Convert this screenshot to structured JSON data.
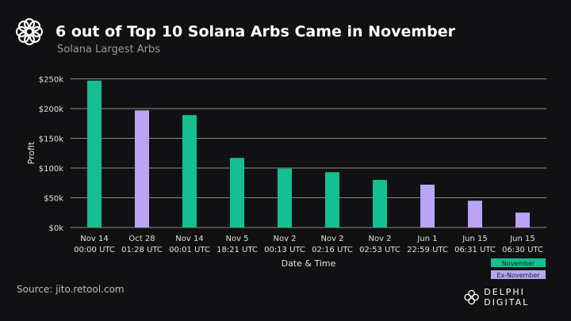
{
  "header": {
    "title": "6 out of Top 10 Solana Arbs Came in November",
    "subtitle": "Solana Largest Arbs",
    "logo_icon": "delphi-flower-icon"
  },
  "footer": {
    "source": "Source: jito.retool.com",
    "brand": "DELPHI DIGITAL"
  },
  "chart_data": {
    "type": "bar",
    "title": "6 out of Top 10 Solana Arbs Came in November",
    "subtitle": "Solana Largest Arbs",
    "xlabel": "Date & Time",
    "ylabel": "Profit",
    "ylim": [
      0,
      250000
    ],
    "yticks": [
      0,
      50000,
      100000,
      150000,
      200000,
      250000
    ],
    "ytick_labels": [
      "$0k",
      "$50k",
      "$100k",
      "$150k",
      "$200k",
      "$250k"
    ],
    "grid": true,
    "legend_placement": "bottom-right",
    "categories": [
      [
        "Nov 14",
        "00:00 UTC"
      ],
      [
        "Oct 28",
        "01:28 UTC"
      ],
      [
        "Nov 14",
        "00:01 UTC"
      ],
      [
        "Nov 5",
        "18:21 UTC"
      ],
      [
        "Nov 2",
        "00:13 UTC"
      ],
      [
        "Nov 2",
        "02:16 UTC"
      ],
      [
        "Nov 2",
        "02:53 UTC"
      ],
      [
        "Jun 1",
        "22:59 UTC"
      ],
      [
        "Jun 15",
        "06:31 UTC"
      ],
      [
        "Jun 15",
        "06:30 UTC"
      ]
    ],
    "values": [
      247000,
      197000,
      189000,
      117000,
      99000,
      93000,
      80000,
      72000,
      45000,
      25000
    ],
    "groups": [
      "November",
      "Ex-November",
      "November",
      "November",
      "November",
      "November",
      "November",
      "Ex-November",
      "Ex-November",
      "Ex-November"
    ],
    "legend": [
      {
        "name": "November",
        "color": "#14c08f"
      },
      {
        "name": "Ex-November",
        "color": "#b9a4f5"
      }
    ]
  }
}
